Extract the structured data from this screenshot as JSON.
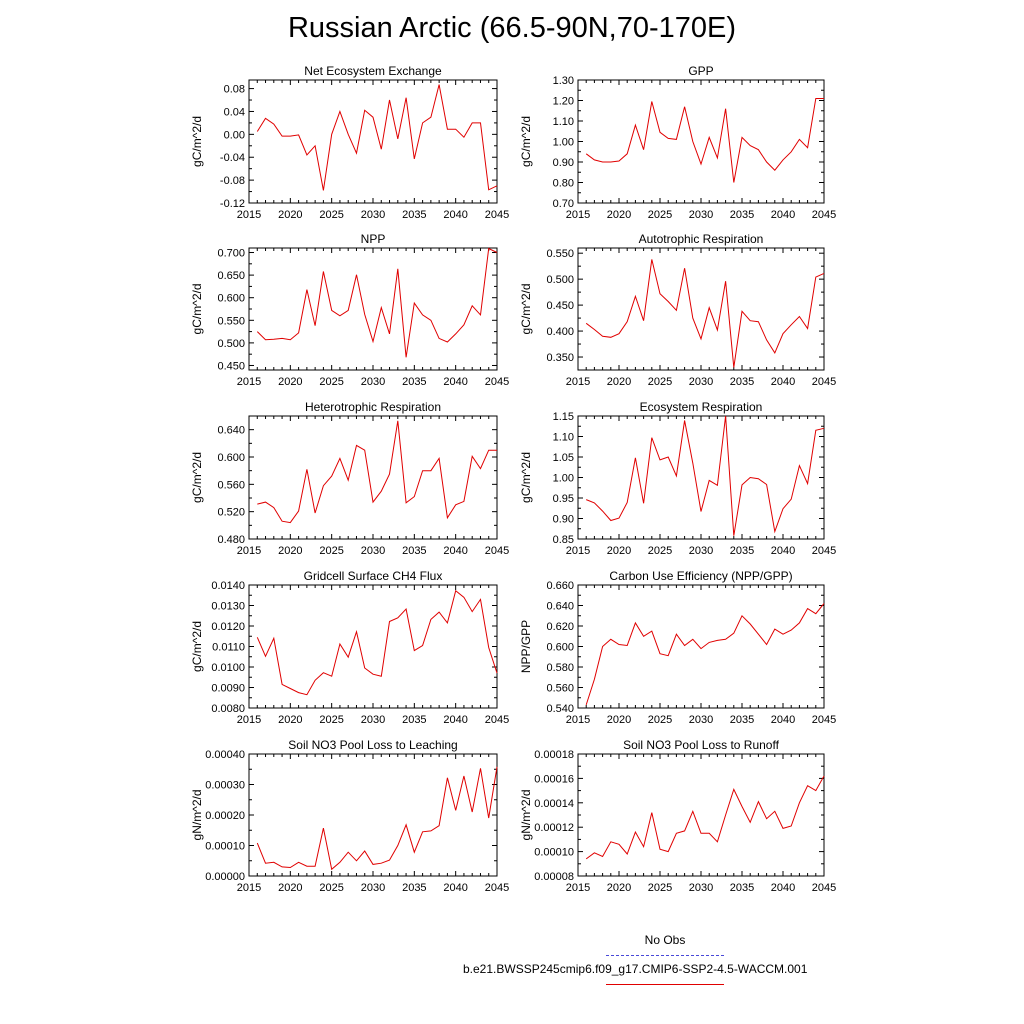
{
  "title": "Russian Arctic (66.5-90N,70-170E)",
  "legend": {
    "obs_label": "No Obs",
    "obs_color": "#4848d8",
    "case_label": "b.e21.BWSSP245cmip6.f09_g17.CMIP6-SSP2-4.5-WACCM.001",
    "case_color": "#e00000"
  },
  "chart_data": [
    {
      "type": "line",
      "title": "Net Ecosystem Exchange",
      "ylabel": "gC/m^2/d",
      "xlim": [
        2015,
        2045
      ],
      "ylim": [
        -0.12,
        0.095
      ],
      "xticks": [
        2015,
        2020,
        2025,
        2030,
        2035,
        2040,
        2045
      ],
      "yticks": [
        -0.12,
        -0.08,
        -0.04,
        0.0,
        0.04,
        0.08
      ],
      "ytick_labels": [
        "-0.12",
        "-0.08",
        "-0.04",
        "0.00",
        "0.04",
        "0.08"
      ],
      "x": [
        2016,
        2017,
        2018,
        2019,
        2020,
        2021,
        2022,
        2023,
        2024,
        2025,
        2026,
        2027,
        2028,
        2029,
        2030,
        2031,
        2032,
        2033,
        2034,
        2035,
        2036,
        2037,
        2038,
        2039,
        2040,
        2041,
        2042,
        2043,
        2044,
        2045
      ],
      "values": [
        0.005,
        0.028,
        0.018,
        -0.003,
        -0.003,
        -0.001,
        -0.036,
        -0.02,
        -0.098,
        0.0,
        0.04,
        0.0,
        -0.033,
        0.042,
        0.03,
        -0.026,
        0.06,
        -0.008,
        0.064,
        -0.043,
        0.02,
        0.03,
        0.087,
        0.009,
        0.009,
        -0.005,
        0.02,
        0.02,
        -0.097,
        -0.09
      ]
    },
    {
      "type": "line",
      "title": "GPP",
      "ylabel": "gC/m^2/d",
      "xlim": [
        2015,
        2045
      ],
      "ylim": [
        0.7,
        1.3
      ],
      "xticks": [
        2015,
        2020,
        2025,
        2030,
        2035,
        2040,
        2045
      ],
      "yticks": [
        0.7,
        0.8,
        0.9,
        1.0,
        1.1,
        1.2,
        1.3
      ],
      "ytick_labels": [
        "0.70",
        "0.80",
        "0.90",
        "1.00",
        "1.10",
        "1.20",
        "1.30"
      ],
      "x": [
        2016,
        2017,
        2018,
        2019,
        2020,
        2021,
        2022,
        2023,
        2024,
        2025,
        2026,
        2027,
        2028,
        2029,
        2030,
        2031,
        2032,
        2033,
        2034,
        2035,
        2036,
        2037,
        2038,
        2039,
        2040,
        2041,
        2042,
        2043,
        2044,
        2045
      ],
      "values": [
        0.94,
        0.91,
        0.9,
        0.9,
        0.905,
        0.94,
        1.08,
        0.96,
        1.195,
        1.045,
        1.015,
        1.01,
        1.17,
        1.0,
        0.89,
        1.02,
        0.92,
        1.16,
        0.8,
        1.02,
        0.98,
        0.96,
        0.9,
        0.86,
        0.91,
        0.95,
        1.01,
        0.97,
        1.21,
        1.21
      ]
    },
    {
      "type": "line",
      "title": "NPP",
      "ylabel": "gC/m^2/d",
      "xlim": [
        2015,
        2045
      ],
      "ylim": [
        0.44,
        0.71
      ],
      "xticks": [
        2015,
        2020,
        2025,
        2030,
        2035,
        2040,
        2045
      ],
      "yticks": [
        0.45,
        0.5,
        0.55,
        0.6,
        0.65,
        0.7
      ],
      "ytick_labels": [
        "0.450",
        "0.500",
        "0.550",
        "0.600",
        "0.650",
        "0.700"
      ],
      "x": [
        2016,
        2017,
        2018,
        2019,
        2020,
        2021,
        2022,
        2023,
        2024,
        2025,
        2026,
        2027,
        2028,
        2029,
        2030,
        2031,
        2032,
        2033,
        2034,
        2035,
        2036,
        2037,
        2038,
        2039,
        2040,
        2041,
        2042,
        2043,
        2044,
        2045
      ],
      "values": [
        0.525,
        0.507,
        0.508,
        0.51,
        0.507,
        0.522,
        0.618,
        0.538,
        0.658,
        0.572,
        0.56,
        0.572,
        0.651,
        0.563,
        0.503,
        0.578,
        0.52,
        0.664,
        0.468,
        0.588,
        0.562,
        0.55,
        0.51,
        0.502,
        0.52,
        0.54,
        0.582,
        0.562,
        0.709,
        0.7
      ]
    },
    {
      "type": "line",
      "title": "Autotrophic Respiration",
      "ylabel": "gC/m^2/d",
      "xlim": [
        2015,
        2045
      ],
      "ylim": [
        0.325,
        0.56
      ],
      "xticks": [
        2015,
        2020,
        2025,
        2030,
        2035,
        2040,
        2045
      ],
      "yticks": [
        0.35,
        0.4,
        0.45,
        0.5,
        0.55
      ],
      "ytick_labels": [
        "0.350",
        "0.400",
        "0.450",
        "0.500",
        "0.550"
      ],
      "x": [
        2016,
        2017,
        2018,
        2019,
        2020,
        2021,
        2022,
        2023,
        2024,
        2025,
        2026,
        2027,
        2028,
        2029,
        2030,
        2031,
        2032,
        2033,
        2034,
        2035,
        2036,
        2037,
        2038,
        2039,
        2040,
        2041,
        2042,
        2043,
        2044,
        2045
      ],
      "values": [
        0.415,
        0.403,
        0.39,
        0.388,
        0.395,
        0.418,
        0.467,
        0.42,
        0.538,
        0.472,
        0.457,
        0.44,
        0.521,
        0.425,
        0.385,
        0.445,
        0.402,
        0.496,
        0.33,
        0.438,
        0.42,
        0.418,
        0.383,
        0.358,
        0.395,
        0.412,
        0.428,
        0.405,
        0.504,
        0.511
      ]
    },
    {
      "type": "line",
      "title": "Heterotrophic Respiration",
      "ylabel": "gC/m^2/d",
      "xlim": [
        2015,
        2045
      ],
      "ylim": [
        0.48,
        0.66
      ],
      "xticks": [
        2015,
        2020,
        2025,
        2030,
        2035,
        2040,
        2045
      ],
      "yticks": [
        0.48,
        0.52,
        0.56,
        0.6,
        0.64
      ],
      "ytick_labels": [
        "0.480",
        "0.520",
        "0.560",
        "0.600",
        "0.640"
      ],
      "x": [
        2016,
        2017,
        2018,
        2019,
        2020,
        2021,
        2022,
        2023,
        2024,
        2025,
        2026,
        2027,
        2028,
        2029,
        2030,
        2031,
        2032,
        2033,
        2034,
        2035,
        2036,
        2037,
        2038,
        2039,
        2040,
        2041,
        2042,
        2043,
        2044,
        2045
      ],
      "values": [
        0.531,
        0.534,
        0.526,
        0.506,
        0.504,
        0.521,
        0.582,
        0.518,
        0.558,
        0.572,
        0.598,
        0.566,
        0.617,
        0.61,
        0.534,
        0.55,
        0.575,
        0.653,
        0.533,
        0.542,
        0.58,
        0.58,
        0.598,
        0.511,
        0.53,
        0.535,
        0.601,
        0.583,
        0.61,
        0.61
      ]
    },
    {
      "type": "line",
      "title": "Ecosystem Respiration",
      "ylabel": "gC/m^2/d",
      "xlim": [
        2015,
        2045
      ],
      "ylim": [
        0.85,
        1.15
      ],
      "xticks": [
        2015,
        2020,
        2025,
        2030,
        2035,
        2040,
        2045
      ],
      "yticks": [
        0.85,
        0.9,
        0.95,
        1.0,
        1.05,
        1.1,
        1.15
      ],
      "ytick_labels": [
        "0.85",
        "0.90",
        "0.95",
        "1.00",
        "1.05",
        "1.10",
        "1.15"
      ],
      "x": [
        2016,
        2017,
        2018,
        2019,
        2020,
        2021,
        2022,
        2023,
        2024,
        2025,
        2026,
        2027,
        2028,
        2029,
        2030,
        2031,
        2032,
        2033,
        2034,
        2035,
        2036,
        2037,
        2038,
        2039,
        2040,
        2041,
        2042,
        2043,
        2044,
        2045
      ],
      "values": [
        0.946,
        0.938,
        0.918,
        0.895,
        0.901,
        0.939,
        1.048,
        0.937,
        1.097,
        1.043,
        1.05,
        1.004,
        1.139,
        1.035,
        0.917,
        0.993,
        0.981,
        1.15,
        0.858,
        0.982,
        1.0,
        0.997,
        0.983,
        0.868,
        0.924,
        0.947,
        1.029,
        0.985,
        1.115,
        1.12
      ]
    },
    {
      "type": "line",
      "title": "Gridcell Surface CH4 Flux",
      "ylabel": "gC/m^2/d",
      "xlim": [
        2015,
        2045
      ],
      "ylim": [
        0.008,
        0.014
      ],
      "xticks": [
        2015,
        2020,
        2025,
        2030,
        2035,
        2040,
        2045
      ],
      "yticks": [
        0.008,
        0.009,
        0.01,
        0.011,
        0.012,
        0.013,
        0.014
      ],
      "ytick_labels": [
        "0.0080",
        "0.0090",
        "0.0100",
        "0.0110",
        "0.0120",
        "0.0130",
        "0.0140"
      ],
      "x": [
        2016,
        2017,
        2018,
        2019,
        2020,
        2021,
        2022,
        2023,
        2024,
        2025,
        2026,
        2027,
        2028,
        2029,
        2030,
        2031,
        2032,
        2033,
        2034,
        2035,
        2036,
        2037,
        2038,
        2039,
        2040,
        2041,
        2042,
        2043,
        2044,
        2045
      ],
      "values": [
        0.01145,
        0.01052,
        0.0114,
        0.00915,
        0.00895,
        0.00875,
        0.00865,
        0.00935,
        0.00972,
        0.00955,
        0.01112,
        0.01048,
        0.01172,
        0.00995,
        0.00965,
        0.00955,
        0.01222,
        0.0124,
        0.01283,
        0.0108,
        0.01105,
        0.01232,
        0.01268,
        0.01215,
        0.01372,
        0.0134,
        0.0127,
        0.0133,
        0.01095,
        0.0097
      ]
    },
    {
      "type": "line",
      "title": "Carbon Use Efficiency (NPP/GPP)",
      "ylabel": "NPP/GPP",
      "xlim": [
        2015,
        2045
      ],
      "ylim": [
        0.54,
        0.66
      ],
      "xticks": [
        2015,
        2020,
        2025,
        2030,
        2035,
        2040,
        2045
      ],
      "yticks": [
        0.54,
        0.56,
        0.58,
        0.6,
        0.62,
        0.64,
        0.66
      ],
      "ytick_labels": [
        "0.540",
        "0.560",
        "0.580",
        "0.600",
        "0.620",
        "0.640",
        "0.660"
      ],
      "x": [
        2016,
        2017,
        2018,
        2019,
        2020,
        2021,
        2022,
        2023,
        2024,
        2025,
        2026,
        2027,
        2028,
        2029,
        2030,
        2031,
        2032,
        2033,
        2034,
        2035,
        2036,
        2037,
        2038,
        2039,
        2040,
        2041,
        2042,
        2043,
        2044,
        2045
      ],
      "values": [
        0.543,
        0.568,
        0.6,
        0.607,
        0.602,
        0.601,
        0.623,
        0.61,
        0.615,
        0.593,
        0.591,
        0.612,
        0.601,
        0.607,
        0.598,
        0.604,
        0.606,
        0.607,
        0.613,
        0.63,
        0.622,
        0.612,
        0.602,
        0.617,
        0.612,
        0.616,
        0.623,
        0.637,
        0.632,
        0.642
      ]
    },
    {
      "type": "line",
      "title": "Soil NO3 Pool Loss to Leaching",
      "ylabel": "gN/m^2/d",
      "xlim": [
        2015,
        2045
      ],
      "ylim": [
        0.0,
        0.0004
      ],
      "xticks": [
        2015,
        2020,
        2025,
        2030,
        2035,
        2040,
        2045
      ],
      "yticks": [
        0.0,
        0.0001,
        0.0002,
        0.0003,
        0.0004
      ],
      "ytick_labels": [
        "0.00000",
        "0.00010",
        "0.00020",
        "0.00030",
        "0.00040"
      ],
      "x": [
        2016,
        2017,
        2018,
        2019,
        2020,
        2021,
        2022,
        2023,
        2024,
        2025,
        2026,
        2027,
        2028,
        2029,
        2030,
        2031,
        2032,
        2033,
        2034,
        2035,
        2036,
        2037,
        2038,
        2039,
        2040,
        2041,
        2042,
        2043,
        2044,
        2045
      ],
      "values": [
        0.000108,
        4.2e-05,
        4.5e-05,
        3e-05,
        2.8e-05,
        4.5e-05,
        3.2e-05,
        3.2e-05,
        0.000157,
        2.2e-05,
        4.5e-05,
        7.8e-05,
        5e-05,
        8.2e-05,
        3.8e-05,
        4.2e-05,
        5.2e-05,
        0.0001,
        0.000168,
        7.8e-05,
        0.000145,
        0.000148,
        0.000165,
        0.000322,
        0.000215,
        0.000328,
        0.00021,
        0.000353,
        0.00019,
        0.000358
      ]
    },
    {
      "type": "line",
      "title": "Soil NO3 Pool Loss to Runoff",
      "ylabel": "gN/m^2/d",
      "xlim": [
        2015,
        2045
      ],
      "ylim": [
        8e-05,
        0.00018
      ],
      "xticks": [
        2015,
        2020,
        2025,
        2030,
        2035,
        2040,
        2045
      ],
      "yticks": [
        8e-05,
        0.0001,
        0.00012,
        0.00014,
        0.00016,
        0.00018
      ],
      "ytick_labels": [
        "0.00008",
        "0.00010",
        "0.00012",
        "0.00014",
        "0.00016",
        "0.00018"
      ],
      "x": [
        2016,
        2017,
        2018,
        2019,
        2020,
        2021,
        2022,
        2023,
        2024,
        2025,
        2026,
        2027,
        2028,
        2029,
        2030,
        2031,
        2032,
        2033,
        2034,
        2035,
        2036,
        2037,
        2038,
        2039,
        2040,
        2041,
        2042,
        2043,
        2044,
        2045
      ],
      "values": [
        9.4e-05,
        9.9e-05,
        9.6e-05,
        0.000108,
        0.000106,
        9.8e-05,
        0.000116,
        0.000104,
        0.000132,
        0.000102,
        0.0001,
        0.000115,
        0.000117,
        0.000133,
        0.000115,
        0.000115,
        0.000108,
        0.00013,
        0.000151,
        0.000137,
        0.000124,
        0.000141,
        0.000127,
        0.000133,
        0.000119,
        0.000121,
        0.00014,
        0.000154,
        0.00015,
        0.000162
      ]
    }
  ]
}
